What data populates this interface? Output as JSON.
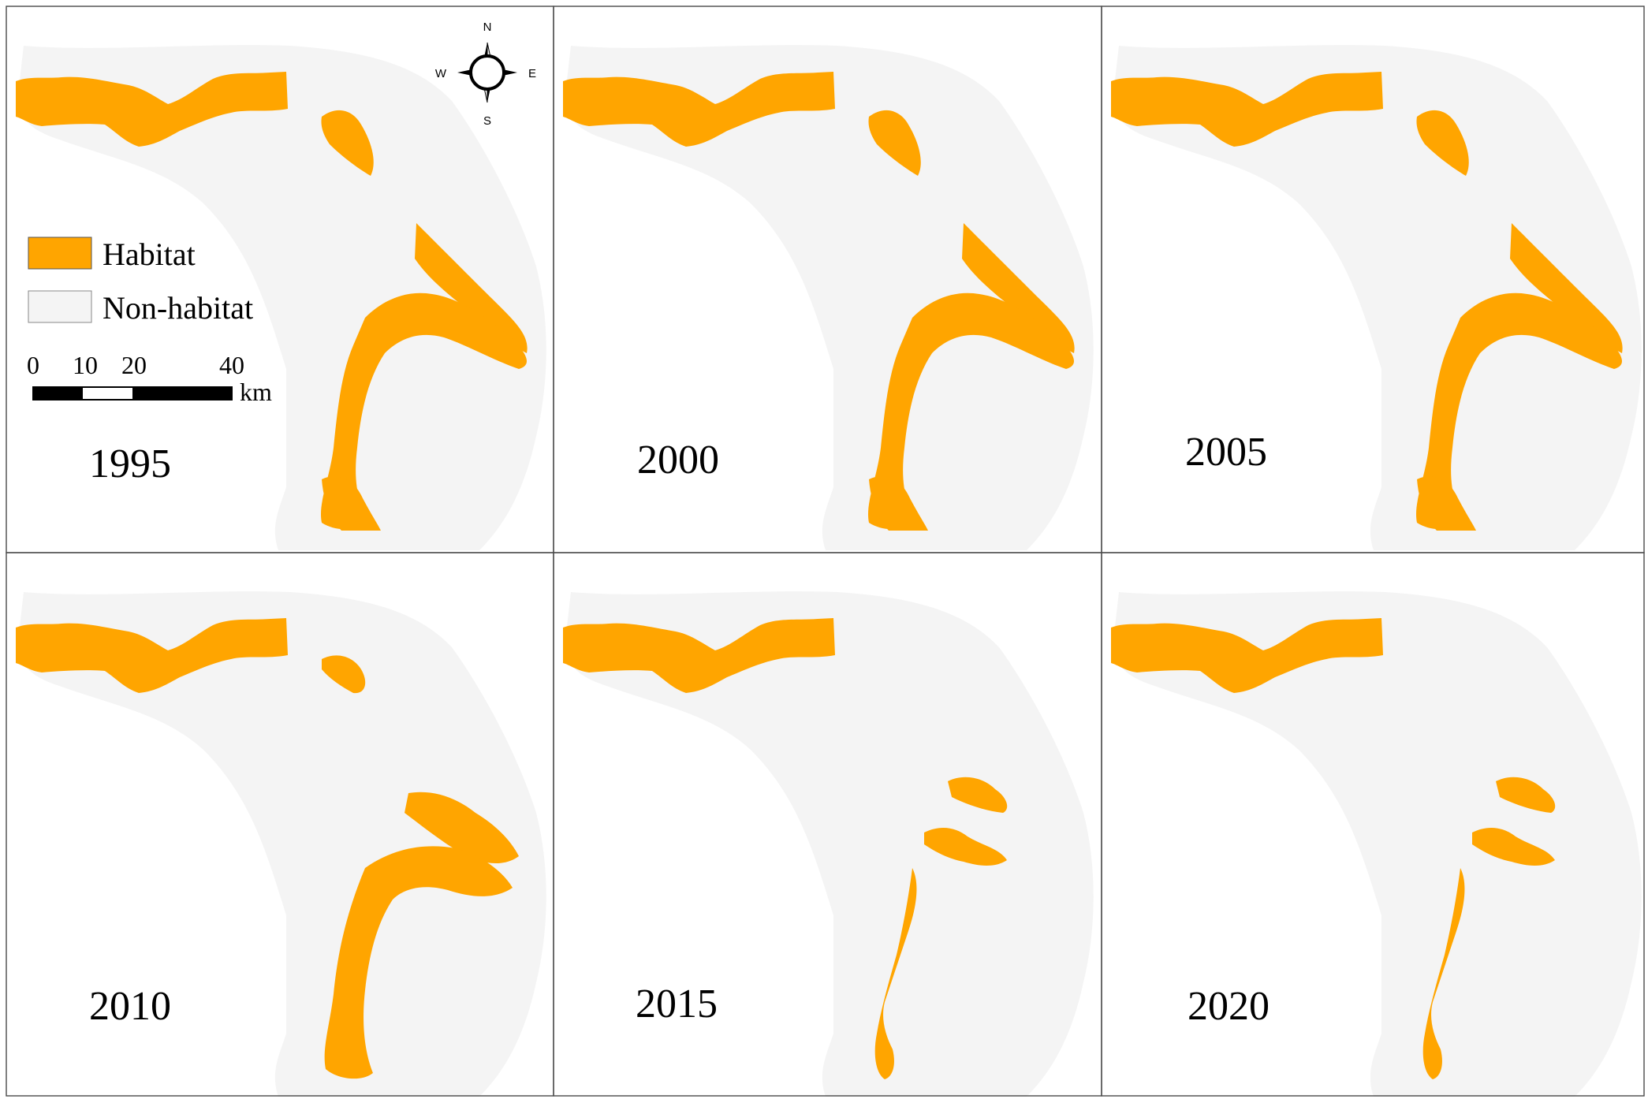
{
  "panels": [
    {
      "year": "1995",
      "extent": "large"
    },
    {
      "year": "2000",
      "extent": "large"
    },
    {
      "year": "2005",
      "extent": "large"
    },
    {
      "year": "2010",
      "extent": "medium"
    },
    {
      "year": "2015",
      "extent": "small"
    },
    {
      "year": "2020",
      "extent": "small"
    }
  ],
  "legend": {
    "habitat": "Habitat",
    "non_habitat": "Non-habitat"
  },
  "scale_bar": {
    "ticks": [
      "0",
      "10",
      "20",
      "40"
    ],
    "unit": "km"
  },
  "compass": {
    "n": "N",
    "s": "S",
    "e": "E",
    "w": "W"
  },
  "colors": {
    "habitat": "#FFA500",
    "non_habitat": "#F4F4F4",
    "border": "#4A4A4A"
  }
}
